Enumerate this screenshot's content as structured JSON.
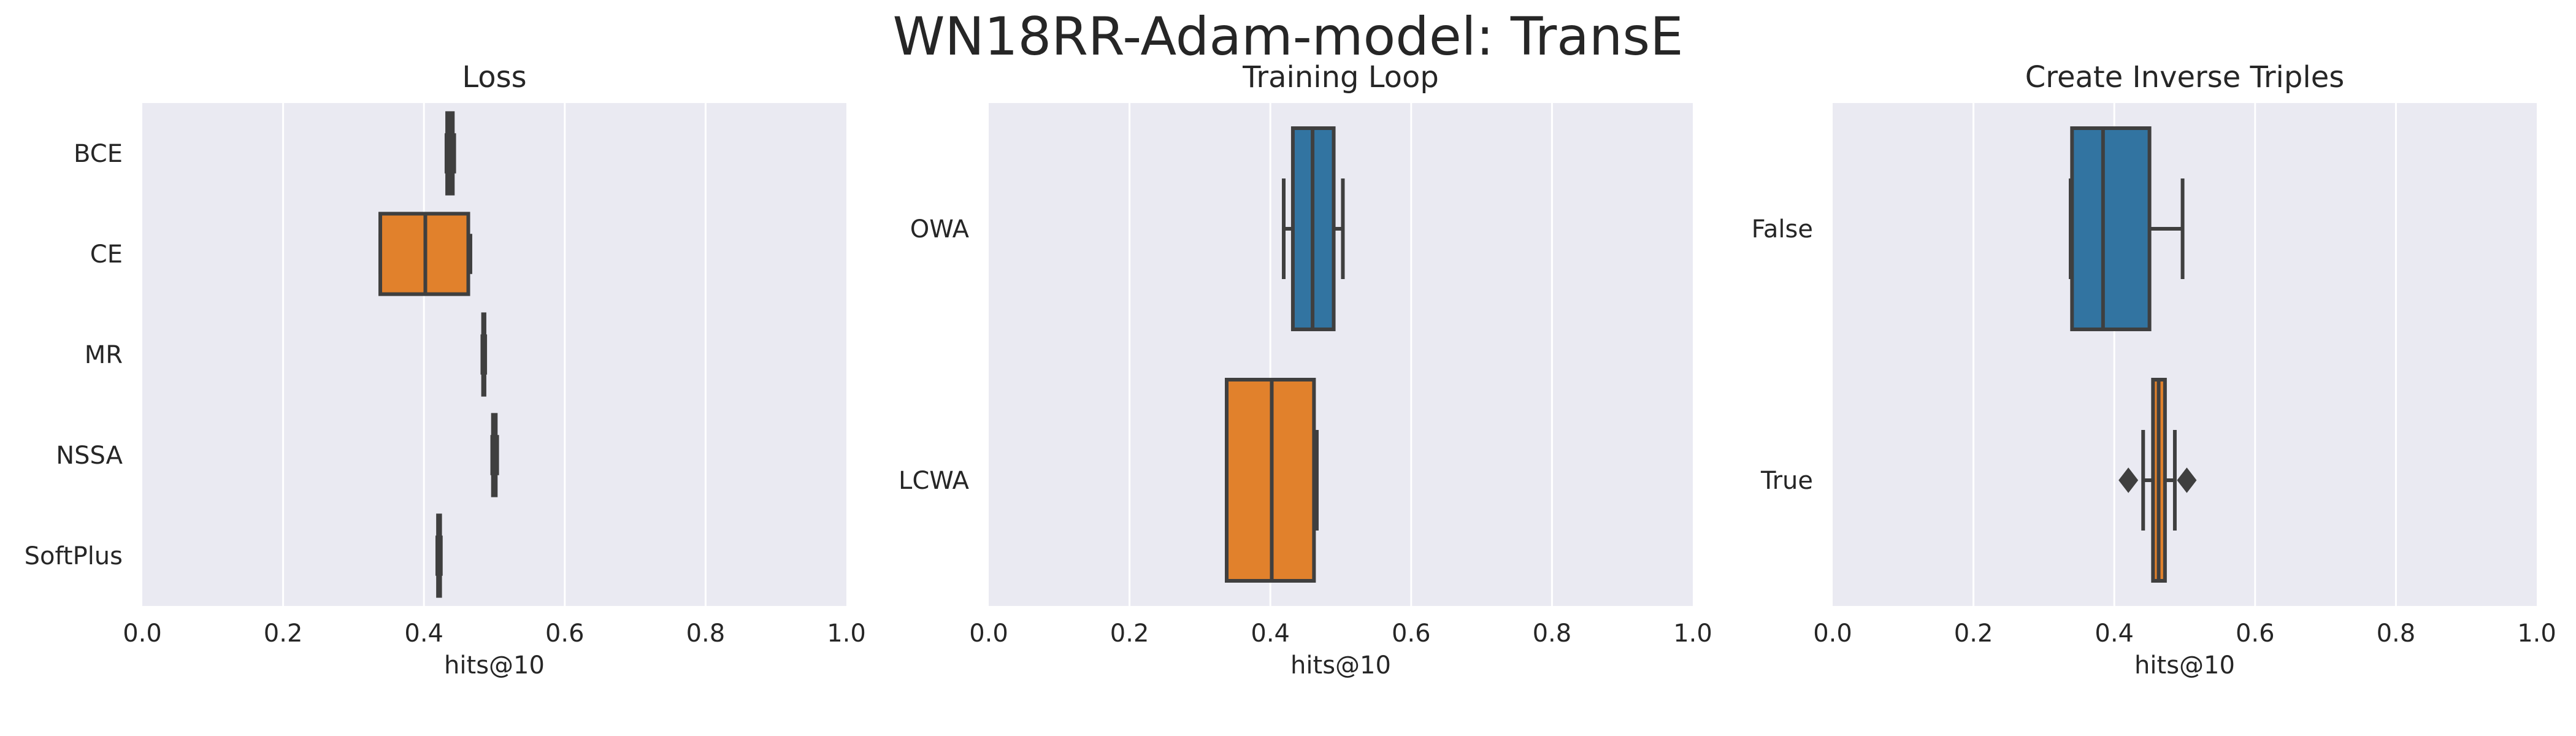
{
  "figure": {
    "title": "WN18RR-Adam-model: TransE"
  },
  "colors": {
    "axes_bg": "#eaeaf2",
    "grid": "#ffffff",
    "line": "#3f3f3f",
    "blue": "#3274a1",
    "orange": "#e1812c"
  },
  "chart_data": [
    {
      "type": "box",
      "orient": "horizontal",
      "title": "Loss",
      "xlabel": "hits@10",
      "xlim": [
        0.0,
        1.0
      ],
      "xticks": [
        "0.0",
        "0.2",
        "0.4",
        "0.6",
        "0.8",
        "1.0"
      ],
      "categories": [
        "BCE",
        "CE",
        "MR",
        "NSSA",
        "SoftPlus"
      ],
      "boxes": [
        {
          "whislo": 0.432,
          "q1": 0.433,
          "med": 0.436,
          "q3": 0.441,
          "whishi": 0.443,
          "color": "#3274a1",
          "fliers": []
        },
        {
          "whislo": 0.338,
          "q1": 0.338,
          "med": 0.402,
          "q3": 0.463,
          "whishi": 0.466,
          "color": "#e1812c",
          "fliers": []
        },
        {
          "whislo": 0.483,
          "q1": 0.484,
          "med": 0.485,
          "q3": 0.486,
          "whishi": 0.487,
          "color": "#3a923a",
          "fliers": []
        },
        {
          "whislo": 0.497,
          "q1": 0.498,
          "med": 0.5,
          "q3": 0.502,
          "whishi": 0.504,
          "color": "#c03d3e",
          "fliers": []
        },
        {
          "whislo": 0.419,
          "q1": 0.42,
          "med": 0.421,
          "q3": 0.423,
          "whishi": 0.424,
          "color": "#9372b2",
          "fliers": []
        }
      ]
    },
    {
      "type": "box",
      "orient": "horizontal",
      "title": "Training Loop",
      "xlabel": "hits@10",
      "xlim": [
        0.0,
        1.0
      ],
      "xticks": [
        "0.0",
        "0.2",
        "0.4",
        "0.6",
        "0.8",
        "1.0"
      ],
      "categories": [
        "OWA",
        "LCWA"
      ],
      "boxes": [
        {
          "whislo": 0.419,
          "q1": 0.432,
          "med": 0.46,
          "q3": 0.49,
          "whishi": 0.503,
          "color": "#3274a1",
          "fliers": []
        },
        {
          "whislo": 0.338,
          "q1": 0.338,
          "med": 0.402,
          "q3": 0.462,
          "whishi": 0.466,
          "color": "#e1812c",
          "fliers": []
        }
      ]
    },
    {
      "type": "box",
      "orient": "horizontal",
      "title": "Create Inverse Triples",
      "xlabel": "hits@10",
      "xlim": [
        0.0,
        1.0
      ],
      "xticks": [
        "0.0",
        "0.2",
        "0.4",
        "0.6",
        "0.8",
        "1.0"
      ],
      "categories": [
        "False",
        "True"
      ],
      "boxes": [
        {
          "whislo": 0.338,
          "q1": 0.34,
          "med": 0.384,
          "q3": 0.45,
          "whishi": 0.497,
          "color": "#3274a1",
          "fliers": []
        },
        {
          "whislo": 0.441,
          "q1": 0.455,
          "med": 0.463,
          "q3": 0.472,
          "whishi": 0.486,
          "color": "#e1812c",
          "fliers": [
            0.42,
            0.503
          ]
        }
      ]
    }
  ]
}
